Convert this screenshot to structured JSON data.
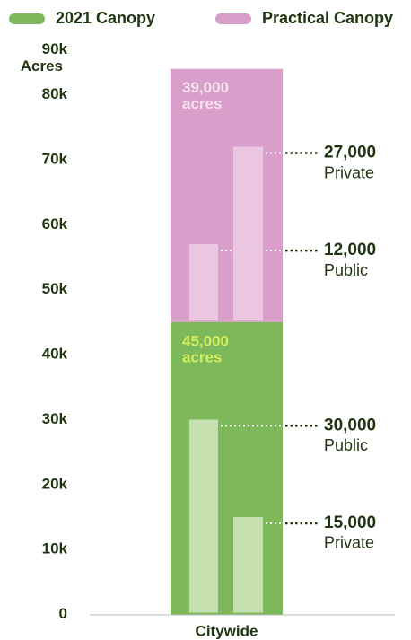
{
  "chart_data": {
    "type": "stacked_bar",
    "categories": [
      "Citywide"
    ],
    "ylabel": "Acres",
    "value_unit": "acres",
    "ylim": [
      0,
      90000
    ],
    "yticks": [
      0,
      {
        "value": 10000,
        "label": "10k"
      },
      {
        "value": 20000,
        "label": "20k"
      },
      {
        "value": 30000,
        "label": "30k"
      },
      {
        "value": 40000,
        "label": "40k"
      },
      {
        "value": 50000,
        "label": "50k"
      },
      {
        "value": 60000,
        "label": "60k"
      },
      {
        "value": 70000,
        "label": "70k"
      },
      {
        "value": 80000,
        "label": "80k"
      },
      {
        "value": 90000,
        "label": "90k"
      }
    ],
    "series": [
      {
        "name": "2021 Canopy",
        "color": "#7db95b",
        "part_color": "#c5dfae",
        "label_color": "#d3ee5c",
        "values": [
          45000
        ],
        "value_labels": [
          "45,000"
        ],
        "parts": [
          {
            "name": "Public",
            "value": 30000,
            "value_label": "30,000"
          },
          {
            "name": "Private",
            "value": 15000,
            "value_label": "15,000"
          }
        ]
      },
      {
        "name": "Practical Canopy",
        "color": "#d99ec9",
        "part_color": "#ecc6e1",
        "label_color": "#f6e2f0",
        "values": [
          39000
        ],
        "value_labels": [
          "39,000"
        ],
        "parts": [
          {
            "name": "Public",
            "value": 12000,
            "value_label": "12,000"
          },
          {
            "name": "Private",
            "value": 27000,
            "value_label": "27,000"
          }
        ]
      }
    ]
  }
}
